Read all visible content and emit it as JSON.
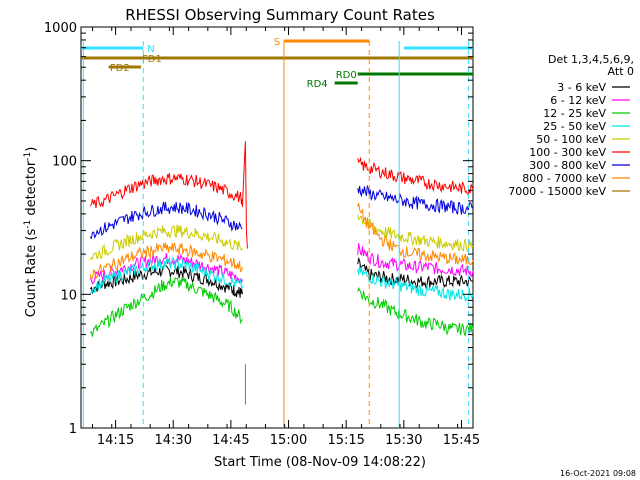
{
  "chart_data": {
    "type": "line",
    "title": "RHESSI Observing Summary Count Rates",
    "xlabel": "Start Time (08-Nov-09 14:08:22)",
    "ylabel_main": "Count Rate (s",
    "ylabel_sup1": "-1",
    "ylabel_mid": " detector",
    "ylabel_sup2": "-1",
    "ylabel_end": ")",
    "yscale": "log",
    "ylim": [
      1,
      1000
    ],
    "xlim_minutes": [
      14.1,
      15.8
    ],
    "x_ticks": [
      {
        "label": "14:15",
        "t": 14.25
      },
      {
        "label": "14:30",
        "t": 14.5
      },
      {
        "label": "14:45",
        "t": 14.75
      },
      {
        "label": "15:00",
        "t": 15.0
      },
      {
        "label": "15:15",
        "t": 15.25
      },
      {
        "label": "15:30",
        "t": 15.5
      },
      {
        "label": "15:45",
        "t": 15.75
      }
    ],
    "y_ticks": [
      {
        "label": "1",
        "v": 1
      },
      {
        "label": "10",
        "v": 10
      },
      {
        "label": "100",
        "v": 100
      },
      {
        "label": "1000",
        "v": 1000
      }
    ],
    "legend_header": [
      "Det 1,3,4,5,6,9,",
      "Att 0"
    ],
    "series": [
      {
        "name": "3 - 6 keV",
        "color": "#000000",
        "seg1": [
          [
            14.14,
            11
          ],
          [
            14.2,
            12
          ],
          [
            14.25,
            12.5
          ],
          [
            14.3,
            13
          ],
          [
            14.35,
            14
          ],
          [
            14.4,
            14.5
          ],
          [
            14.45,
            15
          ],
          [
            14.5,
            15
          ],
          [
            14.55,
            14.5
          ],
          [
            14.6,
            13.5
          ],
          [
            14.65,
            13
          ],
          [
            14.7,
            12
          ],
          [
            14.75,
            11
          ],
          [
            14.78,
            10.5
          ],
          [
            14.8,
            10
          ]
        ],
        "seg2": [
          [
            15.3,
            17
          ],
          [
            15.35,
            14
          ],
          [
            15.4,
            13.5
          ],
          [
            15.45,
            13
          ],
          [
            15.5,
            13
          ],
          [
            15.55,
            12.5
          ],
          [
            15.6,
            12.5
          ],
          [
            15.65,
            12.5
          ],
          [
            15.7,
            12.5
          ],
          [
            15.75,
            12.5
          ],
          [
            15.8,
            12.5
          ]
        ]
      },
      {
        "name": "6 - 12 keV",
        "color": "#ff00ff",
        "seg1": [
          [
            14.14,
            13
          ],
          [
            14.2,
            14
          ],
          [
            14.25,
            15
          ],
          [
            14.3,
            16
          ],
          [
            14.35,
            17
          ],
          [
            14.4,
            18
          ],
          [
            14.45,
            18.5
          ],
          [
            14.5,
            18.5
          ],
          [
            14.55,
            18
          ],
          [
            14.6,
            17
          ],
          [
            14.65,
            16
          ],
          [
            14.7,
            15
          ],
          [
            14.75,
            14
          ],
          [
            14.8,
            13
          ]
        ],
        "seg2": [
          [
            15.3,
            22
          ],
          [
            15.35,
            19
          ],
          [
            15.4,
            17.5
          ],
          [
            15.45,
            17
          ],
          [
            15.5,
            16.5
          ],
          [
            15.55,
            16
          ],
          [
            15.6,
            16
          ],
          [
            15.65,
            15.5
          ],
          [
            15.7,
            15.5
          ],
          [
            15.75,
            15
          ],
          [
            15.8,
            15
          ]
        ]
      },
      {
        "name": "12 - 25 keV",
        "color": "#00cc00",
        "seg1": [
          [
            14.14,
            5
          ],
          [
            14.2,
            6
          ],
          [
            14.25,
            7
          ],
          [
            14.3,
            8
          ],
          [
            14.35,
            9
          ],
          [
            14.4,
            10
          ],
          [
            14.45,
            11.5
          ],
          [
            14.5,
            12.5
          ],
          [
            14.55,
            12
          ],
          [
            14.6,
            11
          ],
          [
            14.65,
            10
          ],
          [
            14.7,
            9
          ],
          [
            14.75,
            8
          ],
          [
            14.8,
            6.5
          ]
        ],
        "seg2": [
          [
            15.3,
            11
          ],
          [
            15.35,
            9
          ],
          [
            15.4,
            8.5
          ],
          [
            15.45,
            7.5
          ],
          [
            15.5,
            7
          ],
          [
            15.55,
            6.5
          ],
          [
            15.6,
            6
          ],
          [
            15.65,
            6
          ],
          [
            15.7,
            5.5
          ],
          [
            15.75,
            5.5
          ],
          [
            15.8,
            5.5
          ]
        ]
      },
      {
        "name": "25 - 50 keV",
        "color": "#00e5e5",
        "seg1": [
          [
            14.14,
            11
          ],
          [
            14.2,
            12.5
          ],
          [
            14.25,
            13.5
          ],
          [
            14.3,
            14.5
          ],
          [
            14.35,
            15.5
          ],
          [
            14.4,
            16.5
          ],
          [
            14.45,
            17
          ],
          [
            14.5,
            17
          ],
          [
            14.55,
            16.5
          ],
          [
            14.6,
            15.5
          ],
          [
            14.65,
            14.5
          ],
          [
            14.7,
            13.5
          ],
          [
            14.75,
            12.5
          ],
          [
            14.8,
            11.5
          ]
        ],
        "seg2": [
          [
            15.3,
            15
          ],
          [
            15.35,
            13.5
          ],
          [
            15.4,
            12.5
          ],
          [
            15.45,
            12
          ],
          [
            15.5,
            11.5
          ],
          [
            15.55,
            11
          ],
          [
            15.6,
            10.5
          ],
          [
            15.65,
            10.5
          ],
          [
            15.7,
            10
          ],
          [
            15.75,
            10
          ],
          [
            15.8,
            10
          ]
        ]
      },
      {
        "name": "50 - 100 keV",
        "color": "#cccc00",
        "seg1": [
          [
            14.14,
            19
          ],
          [
            14.2,
            21
          ],
          [
            14.25,
            23
          ],
          [
            14.3,
            25
          ],
          [
            14.35,
            27
          ],
          [
            14.4,
            28.5
          ],
          [
            14.45,
            29.5
          ],
          [
            14.5,
            30
          ],
          [
            14.55,
            29.5
          ],
          [
            14.6,
            28.5
          ],
          [
            14.65,
            27
          ],
          [
            14.7,
            25.5
          ],
          [
            14.75,
            24
          ],
          [
            14.8,
            22
          ]
        ],
        "seg2": [
          [
            15.3,
            40
          ],
          [
            15.35,
            33
          ],
          [
            15.4,
            30
          ],
          [
            15.45,
            28
          ],
          [
            15.5,
            27
          ],
          [
            15.55,
            26
          ],
          [
            15.6,
            25
          ],
          [
            15.65,
            24.5
          ],
          [
            15.7,
            24
          ],
          [
            15.75,
            23.5
          ],
          [
            15.8,
            23
          ]
        ]
      },
      {
        "name": "100 - 300 keV",
        "color": "#ff0000",
        "seg1": [
          [
            14.14,
            46
          ],
          [
            14.2,
            50
          ],
          [
            14.25,
            55
          ],
          [
            14.3,
            61
          ],
          [
            14.35,
            66
          ],
          [
            14.4,
            70
          ],
          [
            14.45,
            73
          ],
          [
            14.5,
            74
          ],
          [
            14.55,
            73
          ],
          [
            14.6,
            70
          ],
          [
            14.65,
            66
          ],
          [
            14.7,
            62
          ],
          [
            14.75,
            57
          ],
          [
            14.8,
            52
          ]
        ],
        "seg2": [
          [
            15.3,
            95
          ],
          [
            15.35,
            88
          ],
          [
            15.4,
            83
          ],
          [
            15.45,
            78
          ],
          [
            15.5,
            74
          ],
          [
            15.55,
            71
          ],
          [
            15.6,
            68
          ],
          [
            15.65,
            66
          ],
          [
            15.7,
            64
          ],
          [
            15.75,
            62
          ],
          [
            15.8,
            61
          ]
        ]
      },
      {
        "name": "300 - 800 keV",
        "color": "#0000dd",
        "seg1": [
          [
            14.14,
            29
          ],
          [
            14.2,
            31
          ],
          [
            14.25,
            34
          ],
          [
            14.3,
            37
          ],
          [
            14.35,
            40
          ],
          [
            14.4,
            42
          ],
          [
            14.45,
            44
          ],
          [
            14.5,
            45
          ],
          [
            14.55,
            44
          ],
          [
            14.6,
            42
          ],
          [
            14.65,
            40
          ],
          [
            14.7,
            37
          ],
          [
            14.75,
            34
          ],
          [
            14.8,
            31
          ]
        ],
        "seg2": [
          [
            15.3,
            62
          ],
          [
            15.35,
            57
          ],
          [
            15.4,
            54
          ],
          [
            15.45,
            52
          ],
          [
            15.5,
            50
          ],
          [
            15.55,
            48
          ],
          [
            15.6,
            47
          ],
          [
            15.65,
            46
          ],
          [
            15.7,
            45
          ],
          [
            15.75,
            44
          ],
          [
            15.8,
            44
          ]
        ]
      },
      {
        "name": "800 - 7000 keV",
        "color": "#ff8800",
        "seg1": [
          [
            14.14,
            14
          ],
          [
            14.2,
            15.5
          ],
          [
            14.25,
            17
          ],
          [
            14.3,
            18.5
          ],
          [
            14.35,
            20
          ],
          [
            14.4,
            21
          ],
          [
            14.45,
            22
          ],
          [
            14.5,
            22
          ],
          [
            14.55,
            21.5
          ],
          [
            14.6,
            20.5
          ],
          [
            14.65,
            19.5
          ],
          [
            14.7,
            18.5
          ],
          [
            14.75,
            17.5
          ],
          [
            14.8,
            16
          ]
        ],
        "seg2": [
          [
            15.3,
            45
          ],
          [
            15.35,
            32
          ],
          [
            15.4,
            26
          ],
          [
            15.45,
            23
          ],
          [
            15.5,
            21
          ],
          [
            15.55,
            20
          ],
          [
            15.6,
            19.5
          ],
          [
            15.65,
            19
          ],
          [
            15.7,
            18.5
          ],
          [
            15.75,
            18
          ],
          [
            15.8,
            18
          ]
        ]
      },
      {
        "name": "7000 - 15000 keV",
        "color": "#a07800",
        "seg1": [],
        "seg2": []
      }
    ],
    "attenuator_bars": [
      {
        "label": "N",
        "color": "#33e0ff",
        "segments": [
          [
            14.1,
            14.37
          ],
          [
            15.5,
            15.8
          ]
        ],
        "y": 48
      },
      {
        "label": "FD1",
        "color": "#a07800",
        "segments": [
          [
            14.1,
            15.8
          ]
        ],
        "y": 58
      },
      {
        "label": "FD2",
        "color": "#a07800",
        "segments": [
          [
            14.22,
            14.36
          ]
        ],
        "y": 67
      },
      {
        "label": "S",
        "color": "#ff8800",
        "segments": [
          [
            14.98,
            15.35
          ]
        ],
        "y": 41
      },
      {
        "label": "RD0",
        "color": "#007700",
        "segments": [
          [
            15.3,
            15.8
          ]
        ],
        "y": 74
      },
      {
        "label": "RD4",
        "color": "#007700",
        "segments": [
          [
            15.2,
            15.3
          ]
        ],
        "y": 83
      }
    ],
    "footer_date": "16-Oct-2021 09:08"
  }
}
